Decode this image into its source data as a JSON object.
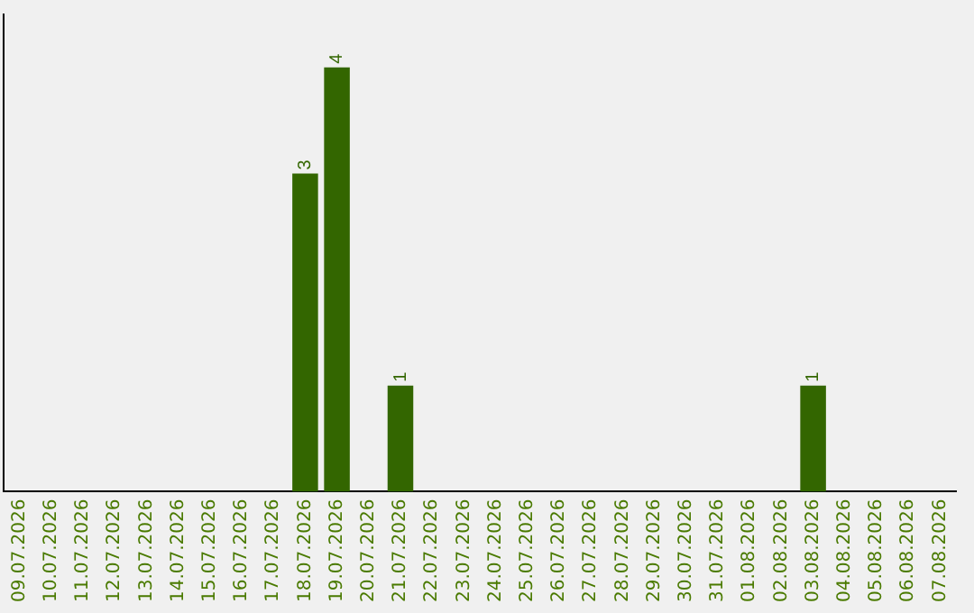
{
  "chart_data": {
    "type": "bar",
    "categories": [
      "09.07.2026",
      "10.07.2026",
      "11.07.2026",
      "12.07.2026",
      "13.07.2026",
      "14.07.2026",
      "15.07.2026",
      "16.07.2026",
      "17.07.2026",
      "18.07.2026",
      "19.07.2026",
      "20.07.2026",
      "21.07.2026",
      "22.07.2026",
      "23.07.2026",
      "24.07.2026",
      "25.07.2026",
      "26.07.2026",
      "27.07.2026",
      "28.07.2026",
      "29.07.2026",
      "30.07.2026",
      "31.07.2026",
      "01.08.2026",
      "02.08.2026",
      "03.08.2026",
      "04.08.2026",
      "05.08.2026",
      "06.08.2026",
      "07.08.2026"
    ],
    "values": [
      0,
      0,
      0,
      0,
      0,
      0,
      0,
      0,
      0,
      3,
      4,
      0,
      1,
      0,
      0,
      0,
      0,
      0,
      0,
      0,
      0,
      0,
      0,
      0,
      0,
      1,
      0,
      0,
      0,
      0
    ],
    "value_labels": [
      null,
      null,
      null,
      null,
      null,
      null,
      null,
      null,
      null,
      "3",
      "4",
      null,
      "1",
      null,
      null,
      null,
      null,
      null,
      null,
      null,
      null,
      null,
      null,
      null,
      null,
      "1",
      null,
      null,
      null,
      null
    ],
    "color": "#336600",
    "tick_labels": "x",
    "grid": false,
    "legend": false
  }
}
